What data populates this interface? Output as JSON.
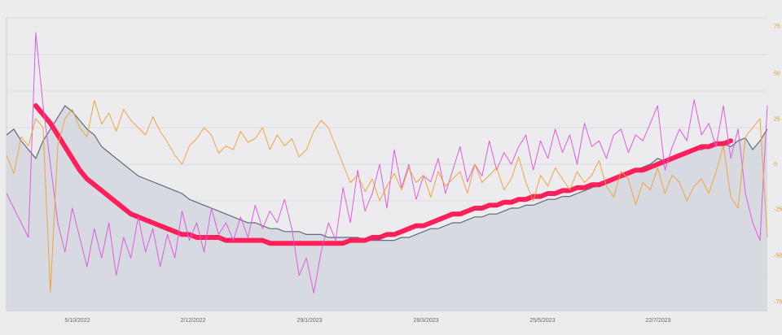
{
  "chart_data": {
    "type": "line",
    "title": "",
    "xlabel": "",
    "ylabel": "",
    "x_ticks": [
      "5/10/2022",
      "2/12/2022",
      "29/1/2023",
      "28/3/2023",
      "25/5/2023",
      "22/7/2023"
    ],
    "y2_ticks": [
      "75",
      "50",
      "25",
      "0",
      "-25",
      "-50",
      "-75"
    ],
    "y2lim": [
      -80,
      80
    ],
    "ylim": [
      0,
      100
    ],
    "grid": true,
    "legend": "none",
    "series": [
      {
        "axis": "left",
        "style": "area",
        "color": "#5c6b78",
        "fill": "#d3d8de",
        "values": [
          60,
          62,
          58,
          55,
          52,
          58,
          62,
          66,
          70,
          68,
          65,
          62,
          60,
          56,
          54,
          52,
          50,
          48,
          46,
          45,
          44,
          43,
          42,
          41,
          40,
          38,
          37,
          36,
          35,
          34,
          33,
          32,
          31,
          30,
          30,
          29,
          28,
          28,
          27,
          27,
          27,
          26,
          26,
          26,
          25,
          25,
          25,
          25,
          25,
          24,
          24,
          24,
          24,
          24,
          25,
          25,
          26,
          27,
          28,
          28,
          29,
          30,
          30,
          31,
          32,
          32,
          33,
          33,
          34,
          35,
          35,
          36,
          36,
          37,
          38,
          38,
          39,
          39,
          40,
          41,
          42,
          43,
          44,
          45,
          46,
          47,
          48,
          49,
          50,
          52,
          51,
          52,
          53,
          54,
          55,
          55,
          56,
          57,
          57,
          56,
          58,
          59,
          55,
          58,
          62
        ]
      },
      {
        "axis": "left",
        "style": "line",
        "color": "#ff1f5a",
        "values": [
          null,
          null,
          null,
          null,
          70,
          67,
          64,
          60,
          56,
          52,
          48,
          45,
          43,
          41,
          39,
          37,
          35,
          33,
          32,
          31,
          30,
          29,
          28,
          27,
          26,
          26,
          25,
          25,
          25,
          25,
          24,
          24,
          24,
          24,
          24,
          24,
          23,
          23,
          23,
          23,
          23,
          23,
          23,
          23,
          23,
          23,
          23,
          24,
          24,
          24,
          25,
          25,
          26,
          26,
          27,
          28,
          29,
          29,
          30,
          31,
          32,
          33,
          33,
          34,
          35,
          35,
          36,
          36,
          37,
          37,
          38,
          38,
          39,
          39,
          40,
          40,
          41,
          41,
          42,
          42,
          43,
          43,
          44,
          45,
          46,
          47,
          48,
          48,
          49,
          50,
          51,
          52,
          53,
          54,
          55,
          56,
          56,
          57,
          57,
          58,
          null,
          null,
          null,
          null,
          null
        ]
      },
      {
        "axis": "left",
        "style": "line",
        "color": "#e05adf",
        "values": [
          40,
          35,
          30,
          25,
          95,
          70,
          50,
          30,
          20,
          35,
          25,
          15,
          28,
          18,
          30,
          12,
          25,
          18,
          32,
          20,
          28,
          15,
          26,
          18,
          34,
          24,
          30,
          20,
          35,
          26,
          30,
          24,
          32,
          25,
          36,
          28,
          34,
          30,
          38,
          28,
          12,
          18,
          6,
          20,
          30,
          24,
          42,
          30,
          48,
          34,
          40,
          50,
          35,
          55,
          42,
          50,
          38,
          46,
          44,
          52,
          40,
          48,
          56,
          44,
          50,
          46,
          58,
          48,
          54,
          50,
          56,
          60,
          48,
          58,
          52,
          62,
          54,
          60,
          50,
          64,
          56,
          58,
          52,
          60,
          62,
          54,
          60,
          58,
          64,
          70,
          48,
          56,
          62,
          58,
          72,
          60,
          64,
          56,
          70,
          52,
          62,
          40,
          30,
          24,
          70
        ]
      },
      {
        "axis": "right",
        "style": "line",
        "color": "#f0a23c",
        "values": [
          5,
          -5,
          15,
          10,
          25,
          20,
          -70,
          10,
          25,
          30,
          20,
          15,
          35,
          22,
          28,
          18,
          30,
          24,
          20,
          16,
          26,
          18,
          12,
          5,
          0,
          10,
          14,
          20,
          16,
          6,
          10,
          8,
          18,
          12,
          14,
          20,
          8,
          16,
          10,
          14,
          4,
          8,
          18,
          24,
          20,
          10,
          0,
          -10,
          -6,
          -15,
          -8,
          -20,
          -12,
          -5,
          -14,
          -2,
          -10,
          -6,
          -18,
          -4,
          -12,
          -8,
          -4,
          -16,
          0,
          -10,
          -6,
          -2,
          -14,
          -8,
          4,
          -10,
          -20,
          -6,
          -12,
          -2,
          -8,
          -14,
          -4,
          -10,
          -6,
          2,
          -12,
          -18,
          -4,
          -8,
          -22,
          -10,
          -14,
          -2,
          -16,
          -6,
          -10,
          -20,
          -12,
          -8,
          -16,
          -4,
          10,
          -18,
          -24,
          15,
          20,
          25,
          -40
        ]
      }
    ]
  }
}
